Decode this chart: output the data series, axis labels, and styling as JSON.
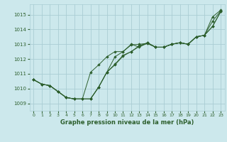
{
  "bg_color": "#cce8ec",
  "grid_color": "#aacdd4",
  "line_color": "#2d5f2d",
  "marker_color": "#2d5f2d",
  "title": "Graphe pression niveau de la mer (hPa)",
  "xlim": [
    -0.5,
    23.5
  ],
  "ylim": [
    1008.5,
    1015.7
  ],
  "yticks": [
    1009,
    1010,
    1011,
    1012,
    1013,
    1014,
    1015
  ],
  "xticks": [
    0,
    1,
    2,
    3,
    4,
    5,
    6,
    7,
    8,
    9,
    10,
    11,
    12,
    13,
    14,
    15,
    16,
    17,
    18,
    19,
    20,
    21,
    22,
    23
  ],
  "series": [
    [
      1010.6,
      1010.3,
      1010.2,
      1009.8,
      1009.4,
      1009.3,
      1009.3,
      1009.3,
      1010.1,
      1011.1,
      1011.6,
      1012.2,
      1012.5,
      1012.9,
      1013.1,
      1012.8,
      1012.8,
      1013.0,
      1013.1,
      1013.0,
      1013.5,
      1013.6,
      1014.2,
      1015.2
    ],
    [
      1010.6,
      1010.3,
      1010.2,
      1009.8,
      1009.4,
      1009.3,
      1009.3,
      1009.3,
      1010.1,
      1011.1,
      1011.65,
      1012.25,
      1012.5,
      1012.85,
      1013.05,
      1012.8,
      1012.8,
      1013.0,
      1013.1,
      1013.0,
      1013.5,
      1013.6,
      1014.55,
      1015.25
    ],
    [
      1010.6,
      1010.3,
      1010.2,
      1009.8,
      1009.4,
      1009.3,
      1009.3,
      1011.1,
      1011.6,
      1012.15,
      1012.5,
      1012.5,
      1012.95,
      1013.0,
      1013.05,
      1012.8,
      1012.8,
      1013.0,
      1013.1,
      1013.0,
      1013.5,
      1013.6,
      1014.2,
      1015.2
    ],
    [
      1010.6,
      1010.3,
      1010.2,
      1009.8,
      1009.4,
      1009.3,
      1009.3,
      1009.3,
      1010.1,
      1011.1,
      1012.15,
      1012.5,
      1013.0,
      1012.8,
      1013.1,
      1012.8,
      1012.8,
      1013.0,
      1013.1,
      1013.0,
      1013.5,
      1013.6,
      1014.85,
      1015.3
    ]
  ]
}
